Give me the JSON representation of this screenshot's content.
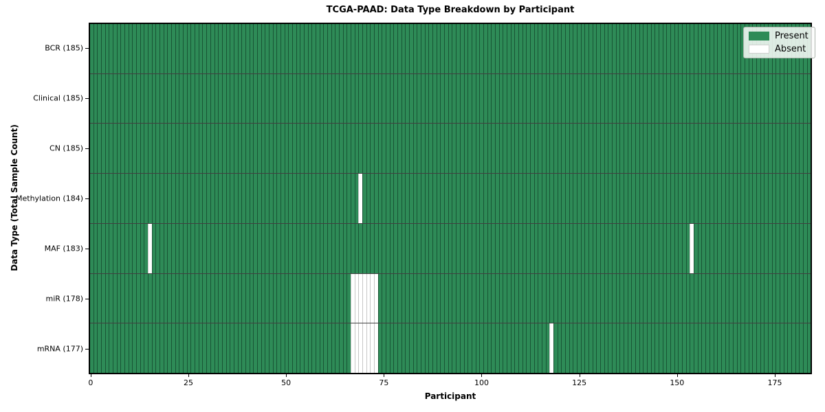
{
  "figure": {
    "title": "TCGA-PAAD: Data Type Breakdown by Participant",
    "xlabel": "Participant",
    "ylabel": "Data Type (Total Sample Count)"
  },
  "legend": {
    "items": [
      {
        "label": "Present",
        "color": "#2e8b57"
      },
      {
        "label": "Absent",
        "color": "#ffffff"
      }
    ]
  },
  "chart_data": {
    "type": "heatmap",
    "title": "TCGA-PAAD: Data Type Breakdown by Participant",
    "xlabel": "Participant",
    "ylabel": "Data Type (Total Sample Count)",
    "n_participants": 185,
    "x_range": [
      0,
      185
    ],
    "x_ticks": [
      0,
      25,
      50,
      75,
      100,
      125,
      150,
      175
    ],
    "categories": [
      "BCR (185)",
      "Clinical (185)",
      "CN (185)",
      "Methylation (184)",
      "MAF (183)",
      "miR (178)",
      "mRNA (177)"
    ],
    "rows": [
      {
        "label": "BCR (185)",
        "data_type": "BCR",
        "present_count": 185,
        "absent_participants": []
      },
      {
        "label": "Clinical (185)",
        "data_type": "Clinical",
        "present_count": 185,
        "absent_participants": []
      },
      {
        "label": "CN (185)",
        "data_type": "CN",
        "present_count": 185,
        "absent_participants": []
      },
      {
        "label": "Methylation (184)",
        "data_type": "Methylation",
        "present_count": 184,
        "absent_participants": [
          69
        ]
      },
      {
        "label": "MAF (183)",
        "data_type": "MAF",
        "present_count": 183,
        "absent_participants": [
          15,
          154
        ]
      },
      {
        "label": "miR (178)",
        "data_type": "miR",
        "present_count": 178,
        "absent_participants": [
          67,
          68,
          69,
          70,
          71,
          72,
          73
        ]
      },
      {
        "label": "mRNA (177)",
        "data_type": "mRNA",
        "present_count": 177,
        "absent_participants": [
          67,
          68,
          69,
          70,
          71,
          72,
          73,
          118
        ]
      }
    ],
    "colors": {
      "present": "#2e8b57",
      "absent": "#ffffff",
      "cell_edge": "#1d4a30",
      "absent_cell_edge": "#c6c6c6",
      "row_separator": "#1a1a1a",
      "spine": "#000000"
    },
    "legend_position": "upper right",
    "grid": false
  }
}
